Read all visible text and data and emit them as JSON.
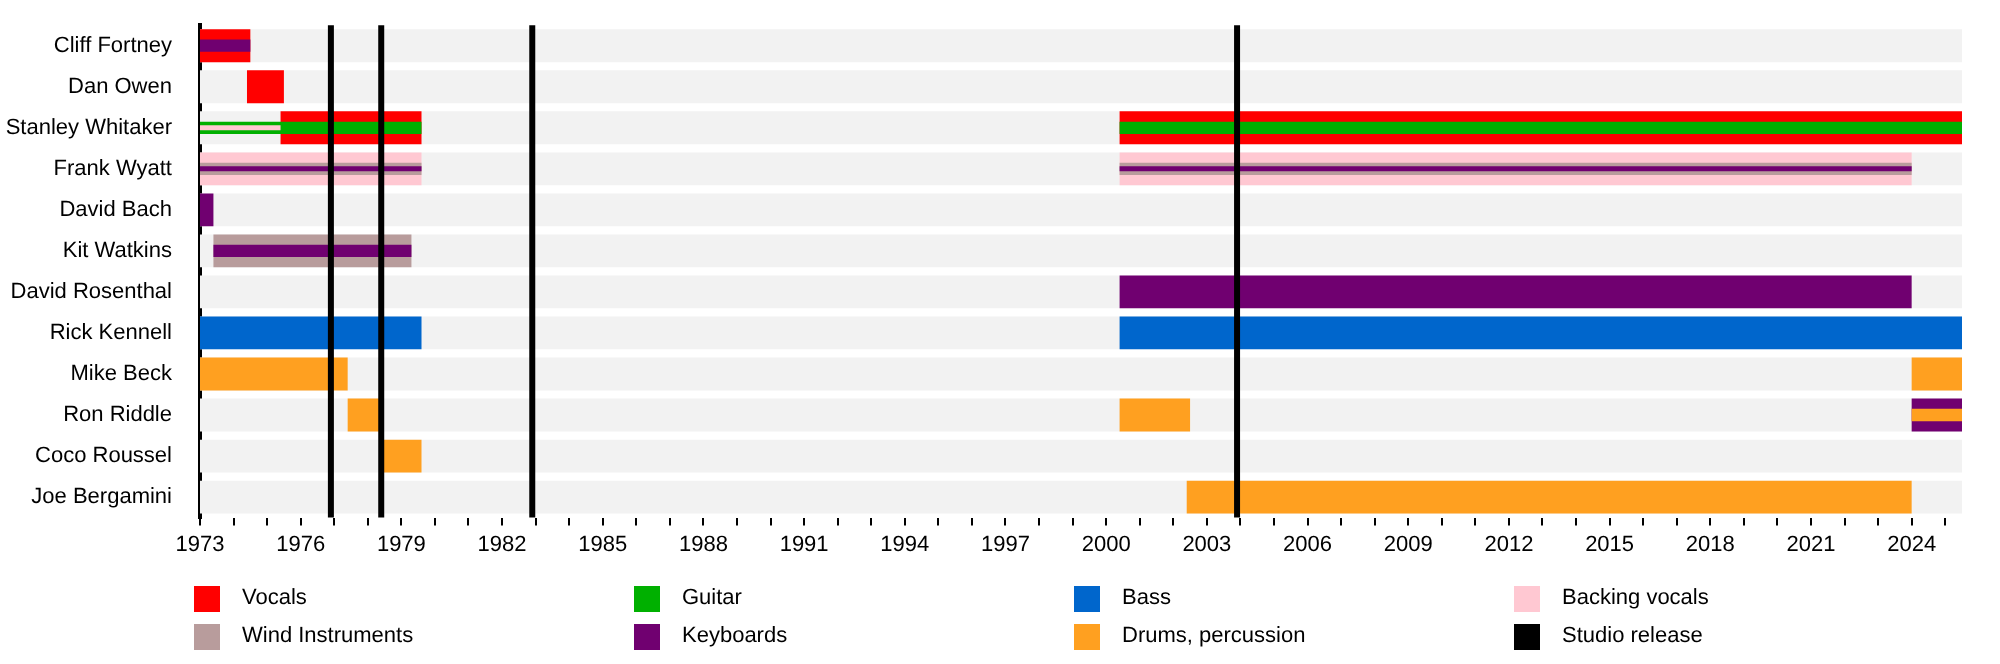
{
  "chart_data": {
    "type": "bar",
    "orientation": "horizontal",
    "legend": "bottom",
    "categories": [
      "Cliff Fortney",
      "Dan Owen",
      "Stanley Whitaker",
      "Frank Wyatt",
      "David Bach",
      "Kit Watkins",
      "David Rosenthal",
      "Rick Kennell",
      "Mike Beck",
      "Ron Riddle",
      "Coco Roussel",
      "Joe Bergamini"
    ],
    "xlim": [
      1973,
      2025.5
    ],
    "xticks": [
      1973,
      {
        "value": 1974,
        "label": null
      },
      {
        "value": 1975,
        "label": null
      },
      1976,
      {
        "value": 1977,
        "label": null
      },
      {
        "value": 1978,
        "label": null
      },
      1979,
      {
        "value": 1980,
        "label": null
      },
      {
        "value": 1981,
        "label": null
      },
      1982,
      {
        "value": 1983,
        "label": null
      },
      {
        "value": 1984,
        "label": null
      },
      1985,
      {
        "value": 1986,
        "label": null
      },
      {
        "value": 1987,
        "label": null
      },
      1988,
      {
        "value": 1989,
        "label": null
      },
      {
        "value": 1990,
        "label": null
      },
      1991,
      {
        "value": 1992,
        "label": null
      },
      {
        "value": 1993,
        "label": null
      },
      1994,
      {
        "value": 1995,
        "label": null
      },
      {
        "value": 1996,
        "label": null
      },
      1997,
      {
        "value": 1998,
        "label": null
      },
      {
        "value": 1999,
        "label": null
      },
      2000,
      {
        "value": 2001,
        "label": null
      },
      {
        "value": 2002,
        "label": null
      },
      2003,
      {
        "value": 2004,
        "label": null
      },
      {
        "value": 2005,
        "label": null
      },
      2006,
      {
        "value": 2007,
        "label": null
      },
      {
        "value": 2008,
        "label": null
      },
      2009,
      {
        "value": 2010,
        "label": null
      },
      {
        "value": 2011,
        "label": null
      },
      2012,
      {
        "value": 2013,
        "label": null
      },
      {
        "value": 2014,
        "label": null
      },
      2015,
      {
        "value": 2016,
        "label": null
      },
      {
        "value": 2017,
        "label": null
      },
      2018,
      {
        "value": 2019,
        "label": null
      },
      {
        "value": 2020,
        "label": null
      },
      2021,
      {
        "value": 2022,
        "label": null
      },
      {
        "value": 2023,
        "label": null
      },
      2024,
      {
        "value": 2025,
        "label": null
      }
    ],
    "series": [
      {
        "name": "Vocals",
        "color": "#ff0000",
        "base": [
          1973,
          1974.4,
          1975.4,
          null,
          null,
          null,
          null,
          null,
          null,
          null,
          null,
          null
        ],
        "values": [
          1.5,
          1.1,
          4.2,
          null,
          null,
          null,
          null,
          null,
          null,
          null,
          null,
          null
        ]
      },
      {
        "color": "#ff0000",
        "base": [
          null,
          null,
          2000.4,
          null,
          null,
          null,
          null,
          null,
          null,
          null,
          null,
          null
        ],
        "values": [
          null,
          null,
          25.1,
          null,
          null,
          null,
          null,
          null,
          null,
          null,
          null,
          null
        ]
      },
      {
        "name": "Guitar",
        "color": "#00b000",
        "base": [
          null,
          null,
          1973,
          null,
          null,
          null,
          null,
          null,
          null,
          null,
          null,
          null
        ],
        "values": [
          null,
          null,
          6.6,
          null,
          null,
          null,
          null,
          null,
          null,
          null,
          null,
          null
        ]
      },
      {
        "color": "#00b000",
        "base": [
          null,
          null,
          2000.4,
          null,
          null,
          null,
          null,
          null,
          null,
          null,
          null,
          null
        ],
        "values": [
          null,
          null,
          25.1,
          null,
          null,
          null,
          null,
          null,
          null,
          null,
          null,
          null
        ]
      },
      {
        "name": "Bass",
        "color": "#0066cc",
        "base": [
          null,
          null,
          null,
          null,
          null,
          null,
          null,
          1973,
          null,
          null,
          null,
          null
        ],
        "values": [
          null,
          null,
          null,
          null,
          null,
          null,
          null,
          6.6,
          null,
          null,
          null,
          null
        ]
      },
      {
        "color": "#0066cc",
        "base": [
          null,
          null,
          null,
          null,
          null,
          null,
          null,
          2000.4,
          null,
          null,
          null,
          null
        ],
        "values": [
          null,
          null,
          null,
          null,
          null,
          null,
          null,
          25.1,
          null,
          null,
          null,
          null
        ]
      },
      {
        "name": "Backing vocals",
        "color": "#ffc8d2",
        "base": [
          null,
          null,
          1973,
          1973,
          null,
          null,
          null,
          null,
          null,
          null,
          null,
          null
        ],
        "values": [
          null,
          null,
          2.4,
          6.6,
          null,
          null,
          null,
          null,
          null,
          null,
          null,
          null
        ]
      },
      {
        "color": "#ffc8d2",
        "base": [
          null,
          null,
          null,
          2000.4,
          null,
          null,
          null,
          null,
          null,
          null,
          null,
          null
        ],
        "values": [
          null,
          null,
          null,
          23.6,
          null,
          null,
          null,
          null,
          null,
          null,
          null,
          null
        ]
      },
      {
        "name": "Wind Instruments",
        "color": "#b89c9c",
        "base": [
          null,
          null,
          null,
          1973,
          null,
          1973.4,
          null,
          null,
          null,
          null,
          null,
          null
        ],
        "values": [
          null,
          null,
          null,
          6.6,
          null,
          5.9,
          null,
          null,
          null,
          null,
          null,
          null
        ]
      },
      {
        "color": "#b89c9c",
        "base": [
          null,
          null,
          null,
          2000.4,
          null,
          null,
          null,
          null,
          null,
          null,
          null,
          null
        ],
        "values": [
          null,
          null,
          null,
          23.6,
          null,
          null,
          null,
          null,
          null,
          null,
          null,
          null
        ]
      },
      {
        "name": "Keyboards",
        "color": "#700070",
        "base": [
          1973,
          null,
          null,
          1973,
          1973,
          1973.4,
          null,
          null,
          null,
          null,
          null,
          null
        ],
        "values": [
          1.5,
          null,
          null,
          6.6,
          0.4,
          5.9,
          null,
          null,
          null,
          null,
          null,
          null
        ]
      },
      {
        "color": "#700070",
        "base": [
          null,
          null,
          null,
          2000.4,
          null,
          null,
          2000.4,
          null,
          null,
          2024,
          null,
          null
        ],
        "values": [
          null,
          null,
          null,
          23.6,
          null,
          null,
          23.6,
          null,
          null,
          1.5,
          null,
          null
        ]
      },
      {
        "name": "Drums, percussion",
        "color": "#ffa020",
        "base": [
          null,
          null,
          null,
          null,
          null,
          null,
          null,
          null,
          1973,
          1977.4,
          1978.4,
          2002.4
        ],
        "values": [
          null,
          null,
          null,
          null,
          null,
          null,
          null,
          null,
          4.4,
          1.0,
          1.2,
          21.6
        ]
      },
      {
        "color": "#ffa020",
        "base": [
          null,
          null,
          null,
          null,
          null,
          null,
          null,
          null,
          2024,
          2000.4,
          null,
          null
        ],
        "values": [
          null,
          null,
          null,
          null,
          null,
          null,
          null,
          null,
          1.5,
          2.1,
          null,
          null
        ]
      },
      {
        "color": "#ffa020",
        "base": [
          null,
          null,
          null,
          null,
          null,
          null,
          null,
          null,
          null,
          2024,
          null,
          null
        ],
        "values": [
          null,
          null,
          null,
          null,
          null,
          null,
          null,
          null,
          null,
          1.5,
          null,
          null
        ]
      }
    ],
    "ref_lines": [
      {
        "axis": "x",
        "value": 1976.9,
        "label": "Studio release",
        "color": "#000000"
      },
      {
        "axis": "x",
        "value": 1978.4,
        "color": "#000000"
      },
      {
        "axis": "x",
        "value": 1982.9,
        "color": "#000000"
      },
      {
        "axis": "x",
        "value": 2003.9,
        "color": "#000000"
      }
    ]
  }
}
